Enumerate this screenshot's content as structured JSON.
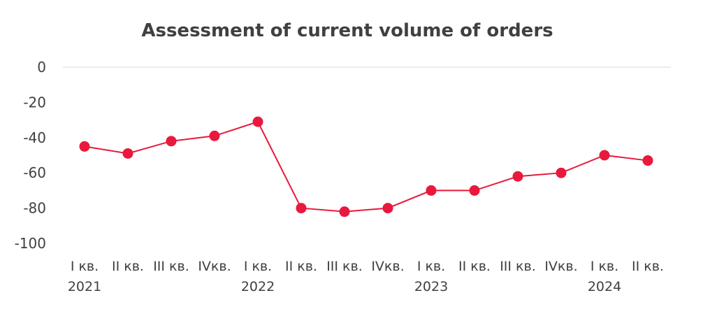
{
  "chart_data": {
    "type": "line",
    "title": "Assessment of current volume of orders",
    "xlabel": "",
    "ylabel": "",
    "ylim": [
      -100,
      0
    ],
    "yticks": [
      "0",
      "-20",
      "-40",
      "-60",
      "-80",
      "-100"
    ],
    "categories": [
      "I кв.",
      "II кв.",
      "III кв.",
      "IVкв.",
      "I кв.",
      "II кв.",
      "III кв.",
      "IVкв.",
      "I кв.",
      "II кв.",
      "III кв.",
      "IVкв.",
      "I кв.",
      "II кв."
    ],
    "years": [
      {
        "label": "2021",
        "index": 0
      },
      {
        "label": "2022",
        "index": 4
      },
      {
        "label": "2023",
        "index": 8
      },
      {
        "label": "2024",
        "index": 12
      }
    ],
    "series": [
      {
        "values": [
          -45,
          -49,
          -42,
          -39,
          -31,
          -80,
          -82,
          -80,
          -70,
          -70,
          -62,
          -60,
          -50,
          -53
        ]
      }
    ],
    "grid": false,
    "legend": "none",
    "color": "#e8193c"
  }
}
